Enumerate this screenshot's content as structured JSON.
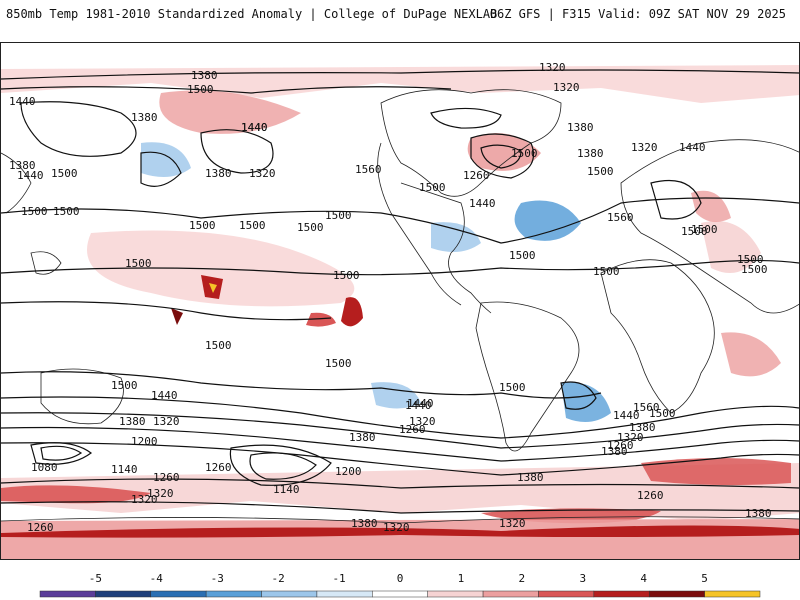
{
  "header": {
    "left_title": "850mb Temp 1981-2010 Standardized Anomaly | College of DuPage NEXLAB",
    "right_title": "06Z GFS | F315 Valid: 09Z SAT NOV 29 2025"
  },
  "colorbar": {
    "ticks": [
      "-5",
      "-4",
      "-3",
      "-2",
      "-1",
      "0",
      "1",
      "2",
      "3",
      "4",
      "5"
    ],
    "colors": [
      "#5b3d99",
      "#1f3f7a",
      "#2a6fb3",
      "#5aa0d8",
      "#9cc6ea",
      "#d6e8f6",
      "#ffffff",
      "#f6d3d3",
      "#ec9f9f",
      "#d95656",
      "#b51e1e",
      "#7a0d0d",
      "#f5c428"
    ]
  },
  "map": {
    "contour_labels": [
      "1380",
      "1320",
      "1320",
      "1440",
      "1500",
      "1380",
      "1440",
      "1380",
      "1320",
      "1380",
      "1440",
      "1500",
      "1500",
      "1500",
      "1560",
      "1500",
      "1260",
      "1440",
      "1500",
      "1380",
      "1320",
      "1440",
      "1380",
      "1500",
      "1500",
      "1440",
      "1500",
      "1500",
      "1560",
      "1500",
      "1500",
      "1500",
      "1500",
      "1500",
      "1500",
      "1500",
      "1440",
      "1500",
      "1440",
      "1380",
      "1320",
      "1260",
      "1200",
      "1140",
      "1080",
      "1260",
      "1140",
      "1200",
      "1260",
      "1320",
      "1380",
      "1320",
      "1380",
      "1320",
      "1560",
      "1500",
      "1440",
      "1380",
      "1320",
      "1260",
      "1260",
      "1380",
      "1500",
      "1500",
      "1440",
      "1380",
      "1320",
      "1260",
      "1320",
      "1380",
      "1500",
      "1500",
      "1500"
    ]
  }
}
